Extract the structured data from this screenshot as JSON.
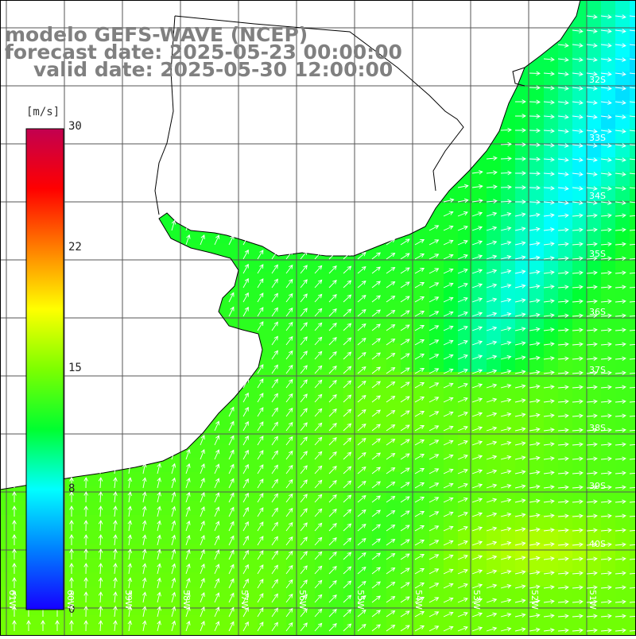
{
  "title": {
    "line1": "modelo GEFS-WAVE (NCEP)",
    "line2": "forecast date: 2025-05-23 00:00:00",
    "line3": "valid date: 2025-05-30 12:00:00"
  },
  "colorbar": {
    "unit": "[m/s]",
    "labels": [
      "30",
      "22",
      "15",
      "8",
      "0"
    ],
    "min": 0,
    "max": 30,
    "stops": [
      "#1500ff",
      "#0080ff",
      "#00ffff",
      "#00ff30",
      "#7dff00",
      "#ffff00",
      "#ff8000",
      "#ff0000",
      "#c20050"
    ]
  },
  "latitude_labels": [
    "32S",
    "33S",
    "34S",
    "35S",
    "36S",
    "37S",
    "38S",
    "39S",
    "40S"
  ],
  "longitude_labels": [
    "61W",
    "60W",
    "59W",
    "58W",
    "57W",
    "56W",
    "55W",
    "54W",
    "53W",
    "52W",
    "51W"
  ],
  "colors": {
    "land": "#ffffff",
    "coastline": "#000000",
    "grid": "#555555",
    "arrows": "#ffffff"
  }
}
